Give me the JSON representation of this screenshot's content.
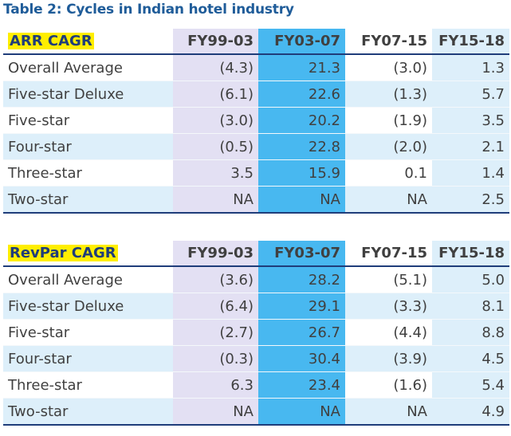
{
  "title": "Table 2: Cycles in Indian hotel industry",
  "columns": [
    "FY99-03",
    "FY03-07",
    "FY07-15",
    "FY15-18"
  ],
  "tables": [
    {
      "label": "ARR CAGR",
      "rows": [
        {
          "name": "Overall Average",
          "values": [
            "(4.3)",
            "21.3",
            "(3.0)",
            "1.3"
          ]
        },
        {
          "name": "Five-star Deluxe",
          "values": [
            "(6.1)",
            "22.6",
            "(1.3)",
            "5.7"
          ]
        },
        {
          "name": "Five-star",
          "values": [
            "(3.0)",
            "20.2",
            "(1.9)",
            "3.5"
          ]
        },
        {
          "name": "Four-star",
          "values": [
            "(0.5)",
            "22.8",
            "(2.0)",
            "2.1"
          ]
        },
        {
          "name": "Three-star",
          "values": [
            "3.5",
            "15.9",
            "0.1",
            "1.4"
          ]
        },
        {
          "name": "Two-star",
          "values": [
            "NA",
            "NA",
            "NA",
            "2.5"
          ]
        }
      ]
    },
    {
      "label": "RevPar CAGR",
      "rows": [
        {
          "name": "Overall Average",
          "values": [
            "(3.6)",
            "28.2",
            "(5.1)",
            "5.0"
          ]
        },
        {
          "name": "Five-star Deluxe",
          "values": [
            "(6.4)",
            "29.1",
            "(3.3)",
            "8.1"
          ]
        },
        {
          "name": "Five-star",
          "values": [
            "(2.7)",
            "26.7",
            "(4.4)",
            "8.8"
          ]
        },
        {
          "name": "Four-star",
          "values": [
            "(0.3)",
            "30.4",
            "(3.9)",
            "4.5"
          ]
        },
        {
          "name": "Three-star",
          "values": [
            "6.3",
            "23.4",
            "(1.6)",
            "5.4"
          ]
        },
        {
          "name": "Two-star",
          "values": [
            "NA",
            "NA",
            "NA",
            "4.9"
          ]
        }
      ]
    }
  ],
  "colors": {
    "title": "#1f5c99",
    "highlight": "#ffee00",
    "col_fy03_07": "#48b8f0",
    "col_fy99_03": "#e3e0f3",
    "band": "#ddeffa",
    "rule": "#1f3d7a"
  }
}
